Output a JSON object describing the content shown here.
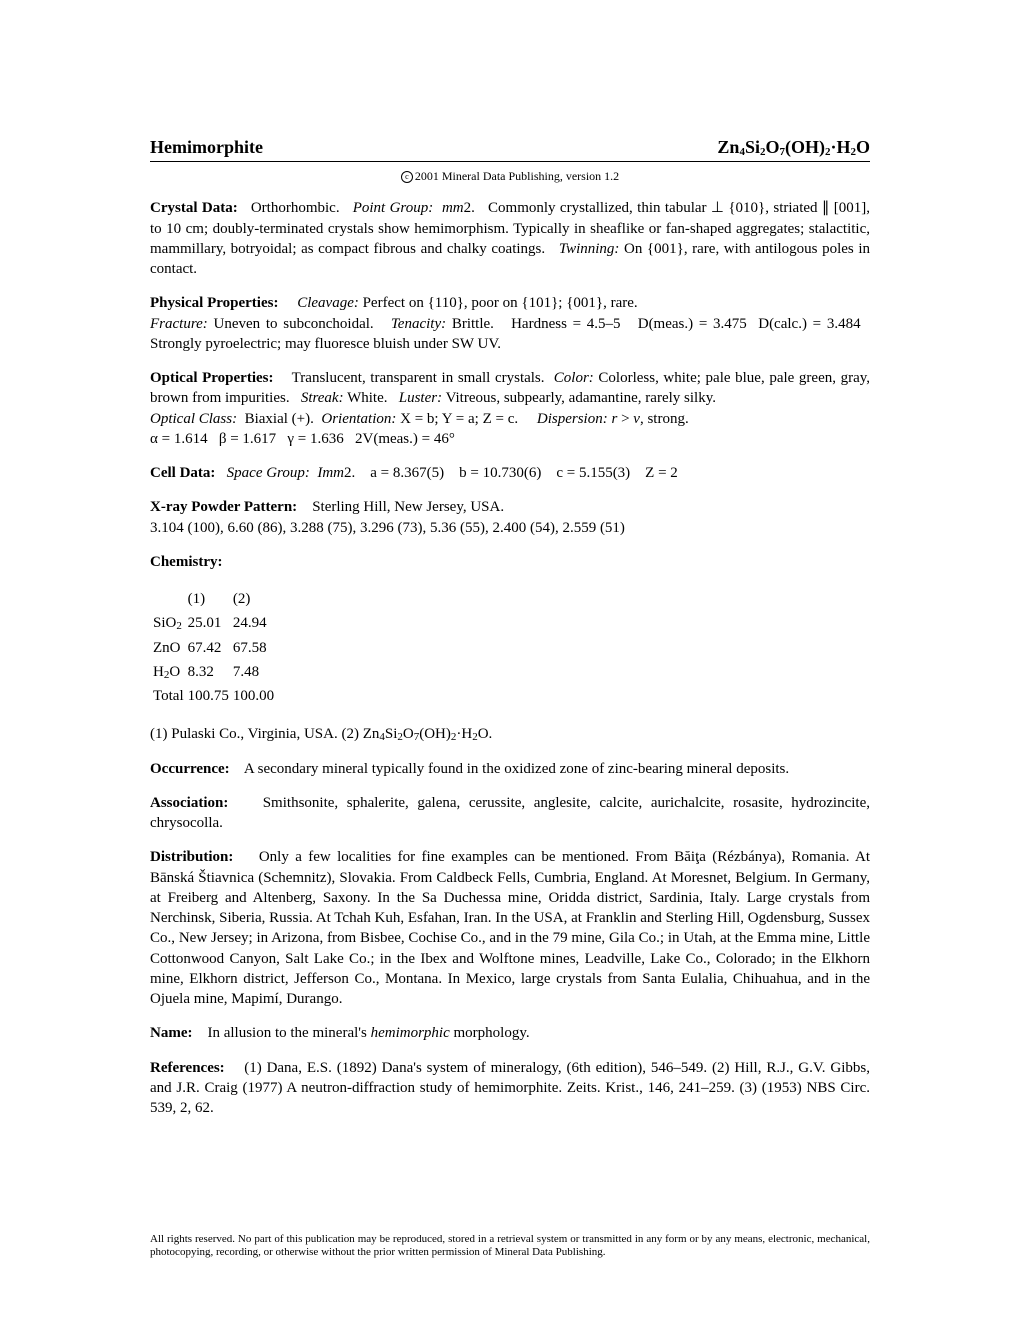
{
  "header": {
    "mineral_name": "Hemimorphite",
    "formula_html": "Zn<sub>4</sub>Si<sub>2</sub>O<sub>7</sub>(OH)<sub>2</sub>&middot;H<sub>2</sub>O"
  },
  "copyright": "2001 Mineral Data Publishing, version 1.2",
  "crystal_data": {
    "label": "Crystal Data:",
    "system": "Orthorhombic.",
    "point_group_label": "Point Group:",
    "point_group": "mm2.",
    "body_html": "Commonly crystallized, thin tabular &perp; {010}, striated &#8741; [001], to 10 cm; doubly-terminated crystals show hemimorphism. Typically in sheaflike or fan-shaped aggregates; stalactitic, mammillary, botryoidal; as compact fibrous and chalky coatings.",
    "twinning_label": "Twinning:",
    "twinning": "On {001}, rare, with antilogous poles in contact."
  },
  "physical": {
    "label": "Physical Properties:",
    "cleavage_label": "Cleavage:",
    "cleavage": "Perfect on {110}, poor on {101}; {001}, rare.",
    "fracture_label": "Fracture:",
    "fracture": "Uneven to subconchoidal.",
    "tenacity_label": "Tenacity:",
    "tenacity": "Brittle.",
    "hardness": "Hardness = 4.5–5",
    "dmeas": "D(meas.) = 3.475",
    "dcalc": "D(calc.) = 3.484",
    "extra": "Strongly pyroelectric; may fluoresce bluish under SW UV."
  },
  "optical": {
    "label": "Optical Properties:",
    "intro": "Translucent, transparent in small crystals.",
    "color_label": "Color:",
    "color": "Colorless, white; pale blue, pale green, gray, brown from impurities.",
    "streak_label": "Streak:",
    "streak": "White.",
    "luster_label": "Luster:",
    "luster": "Vitreous, subpearly, adamantine, rarely silky.",
    "class_label": "Optical Class:",
    "class": "Biaxial (+).",
    "orient_label": "Orientation:",
    "orient": "X = b; Y = a; Z = c.",
    "disp_label": "Dispersion:",
    "disp_html": "<span class='ital'>r</span> &gt; <span class='ital'>v</span>, strong.",
    "indices_html": "&alpha; = 1.614&nbsp;&nbsp;&nbsp;&beta; = 1.617&nbsp;&nbsp;&nbsp;&gamma; = 1.636&nbsp;&nbsp;&nbsp;2V(meas.) = 46&deg;"
  },
  "cell": {
    "label": "Cell Data:",
    "sg_label": "Space Group:",
    "sg": "Imm2.",
    "params": "a = 8.367(5)    b = 10.730(6)    c = 5.155(3)    Z = 2"
  },
  "xray": {
    "label": "X-ray Powder Pattern:",
    "locality": "Sterling Hill, New Jersey, USA.",
    "pattern": "3.104 (100), 6.60 (86), 3.288 (75), 3.296 (73), 5.36 (55), 2.400 (54), 2.559 (51)"
  },
  "chemistry": {
    "label": "Chemistry:",
    "col1": "(1)",
    "col2": "(2)",
    "rows": [
      {
        "k_html": "SiO<sub>2</sub>",
        "a": "25.01",
        "b": "24.94"
      },
      {
        "k_html": "ZnO",
        "a": "67.42",
        "b": "67.58"
      },
      {
        "k_html": "H<sub>2</sub>O",
        "a": "8.32",
        "b": "7.48"
      }
    ],
    "total_label": "Total",
    "total_a": "100.75",
    "total_b": "100.00",
    "note_html": "(1) Pulaski Co., Virginia, USA. (2) Zn<sub>4</sub>Si<sub>2</sub>O<sub>7</sub>(OH)<sub>2</sub>&middot;H<sub>2</sub>O."
  },
  "occurrence": {
    "label": "Occurrence:",
    "text": "A secondary mineral typically found in the oxidized zone of zinc-bearing mineral deposits."
  },
  "association": {
    "label": "Association:",
    "text": "Smithsonite, sphalerite, galena, cerussite, anglesite, calcite, aurichalcite, rosasite, hydrozincite, chrysocolla."
  },
  "distribution": {
    "label": "Distribution:",
    "text_html": "Only a few localities for fine examples can be mentioned. From B&#259;i&#355;a (R&eacute;zb&aacute;nya), Romania. At B&#257;nsk&aacute; &#352;tiavnica (Schemnitz), Slovakia. From Caldbeck Fells, Cumbria, England. At Moresnet, Belgium. In Germany, at Freiberg and Altenberg, Saxony. In the Sa Duchessa mine, Oridda district, Sardinia, Italy. Large crystals from Nerchinsk, Siberia, Russia. At Tchah Kuh, Esfahan, Iran. In the USA, at Franklin and Sterling Hill, Ogdensburg, Sussex Co., New Jersey; in Arizona, from Bisbee, Cochise Co., and in the 79 mine, Gila Co.; in Utah, at the Emma mine, Little Cottonwood Canyon, Salt Lake Co.; in the Ibex and Wolftone mines, Leadville, Lake Co., Colorado; in the Elkhorn mine, Elkhorn district, Jefferson Co., Montana. In Mexico, large crystals from Santa Eulalia, Chihuahua, and in the Ojuela mine, Mapim&iacute;, Durango."
  },
  "name": {
    "label": "Name:",
    "text_html": "In allusion to the mineral's <span class='ital'>hemimorphic</span> morphology."
  },
  "references": {
    "label": "References:",
    "text": "(1) Dana, E.S. (1892) Dana's system of mineralogy, (6th edition), 546–549. (2) Hill, R.J., G.V. Gibbs, and J.R. Craig (1977) A neutron-diffraction study of hemimorphite. Zeits. Krist., 146, 241–259. (3) (1953) NBS Circ. 539, 2, 62."
  },
  "footer": "All rights reserved. No part of this publication may be reproduced, stored in a retrieval system or transmitted in any form or by any means, electronic, mechanical, photocopying, recording, or otherwise without the prior written permission of Mineral Data Publishing."
}
